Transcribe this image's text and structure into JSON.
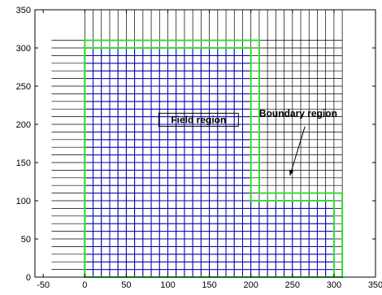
{
  "chart_data": {
    "type": "grid-mesh",
    "title": "",
    "xlabel": "",
    "ylabel": "",
    "xlim": [
      -60,
      350
    ],
    "ylim": [
      0,
      350
    ],
    "xticks": [
      -50,
      0,
      50,
      100,
      150,
      200,
      250,
      300,
      350
    ],
    "yticks": [
      0,
      50,
      100,
      150,
      200,
      250,
      300,
      350
    ],
    "grid": false,
    "mesh": {
      "background_x_range": [
        -40,
        300
      ],
      "background_y_range": [
        0,
        310
      ],
      "background_vertical_x_range": [
        0,
        300
      ],
      "background_vertical_top": 350,
      "cell_size": 10,
      "color": "#000000"
    },
    "regions": [
      {
        "name": "Field region",
        "color": "#0000aa",
        "polygon": [
          [
            0,
            0
          ],
          [
            300,
            0
          ],
          [
            300,
            100
          ],
          [
            200,
            100
          ],
          [
            200,
            300
          ],
          [
            0,
            300
          ]
        ]
      },
      {
        "name": "Boundary region",
        "color": "#33dd33",
        "polygon": [
          [
            0,
            0
          ],
          [
            310,
            0
          ],
          [
            310,
            110
          ],
          [
            210,
            110
          ],
          [
            210,
            310
          ],
          [
            0,
            310
          ]
        ]
      }
    ],
    "annotations": [
      {
        "text": "Field region",
        "x": 137,
        "y": 206,
        "boxed": true
      },
      {
        "text": "Boundary region",
        "x": 210,
        "y": 210,
        "arrow_from": [
          265,
          197
        ],
        "arrow_to": [
          247,
          133
        ]
      }
    ]
  }
}
